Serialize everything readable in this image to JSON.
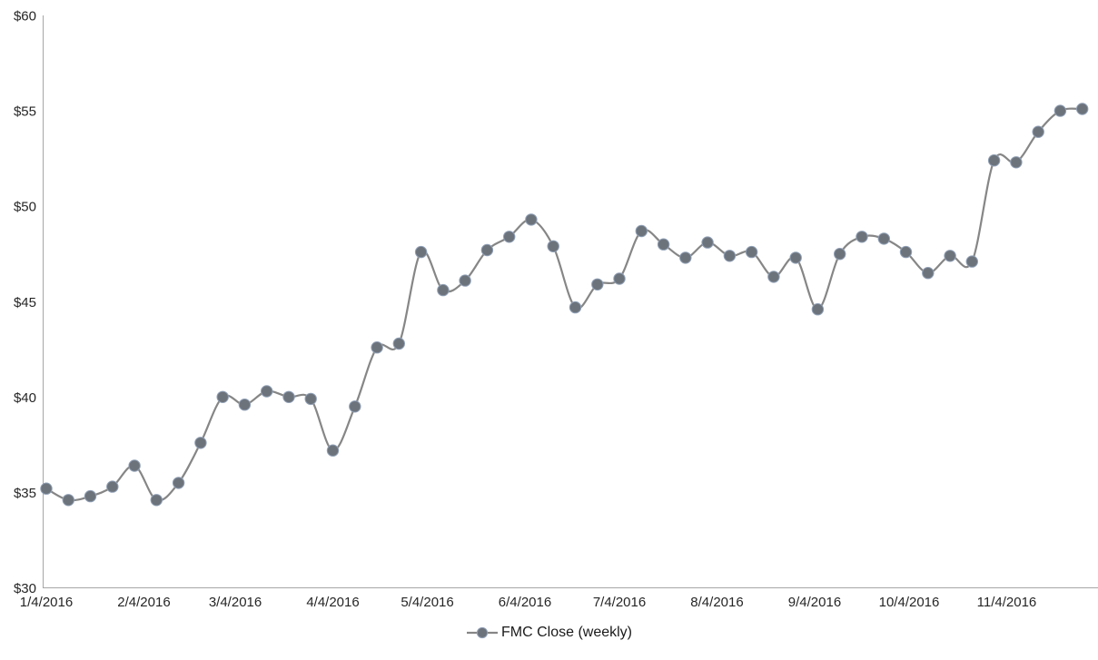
{
  "chart_data": {
    "type": "line",
    "title": "",
    "legend_label": "FMC Close (weekly)",
    "legend_position": "bottom-center",
    "grid": false,
    "smooth_line": true,
    "ylim": [
      30,
      60
    ],
    "y_ticks": [
      {
        "value": 30,
        "label": "$30"
      },
      {
        "value": 35,
        "label": "$35"
      },
      {
        "value": 40,
        "label": "$40"
      },
      {
        "value": 45,
        "label": "$45"
      },
      {
        "value": 50,
        "label": "$50"
      },
      {
        "value": 55,
        "label": "$55"
      },
      {
        "value": 60,
        "label": "$60"
      }
    ],
    "x_ticks": [
      {
        "label": "1/4/2016",
        "week_offset": 0
      },
      {
        "label": "2/4/2016",
        "week_offset": 4.4286
      },
      {
        "label": "3/4/2016",
        "week_offset": 8.5714
      },
      {
        "label": "4/4/2016",
        "week_offset": 13.0
      },
      {
        "label": "5/4/2016",
        "week_offset": 17.2857
      },
      {
        "label": "6/4/2016",
        "week_offset": 21.7143
      },
      {
        "label": "7/4/2016",
        "week_offset": 26.0
      },
      {
        "label": "8/4/2016",
        "week_offset": 30.4286
      },
      {
        "label": "9/4/2016",
        "week_offset": 34.8571
      },
      {
        "label": "10/4/2016",
        "week_offset": 39.1429
      },
      {
        "label": "11/4/2016",
        "week_offset": 43.5714
      }
    ],
    "series": [
      {
        "name": "FMC Close (weekly)",
        "values": [
          35.2,
          34.6,
          34.8,
          35.3,
          36.4,
          34.6,
          35.5,
          37.6,
          40.0,
          39.6,
          40.3,
          40.0,
          39.9,
          37.2,
          39.5,
          42.6,
          42.8,
          47.6,
          45.6,
          46.1,
          47.7,
          48.4,
          49.3,
          47.9,
          44.7,
          45.9,
          46.2,
          48.7,
          48.0,
          47.3,
          48.1,
          47.4,
          47.6,
          46.3,
          47.3,
          44.6,
          47.5,
          48.4,
          48.3,
          47.6,
          46.5,
          47.4,
          47.1,
          52.4,
          52.3,
          53.9,
          55.0,
          55.1
        ]
      }
    ],
    "colors": {
      "line": "#868686",
      "marker_fill": "#6d737b",
      "marker_stroke": "#8f9fb5",
      "axis_line": "#a6a6a6",
      "label_text": "#262626"
    }
  }
}
